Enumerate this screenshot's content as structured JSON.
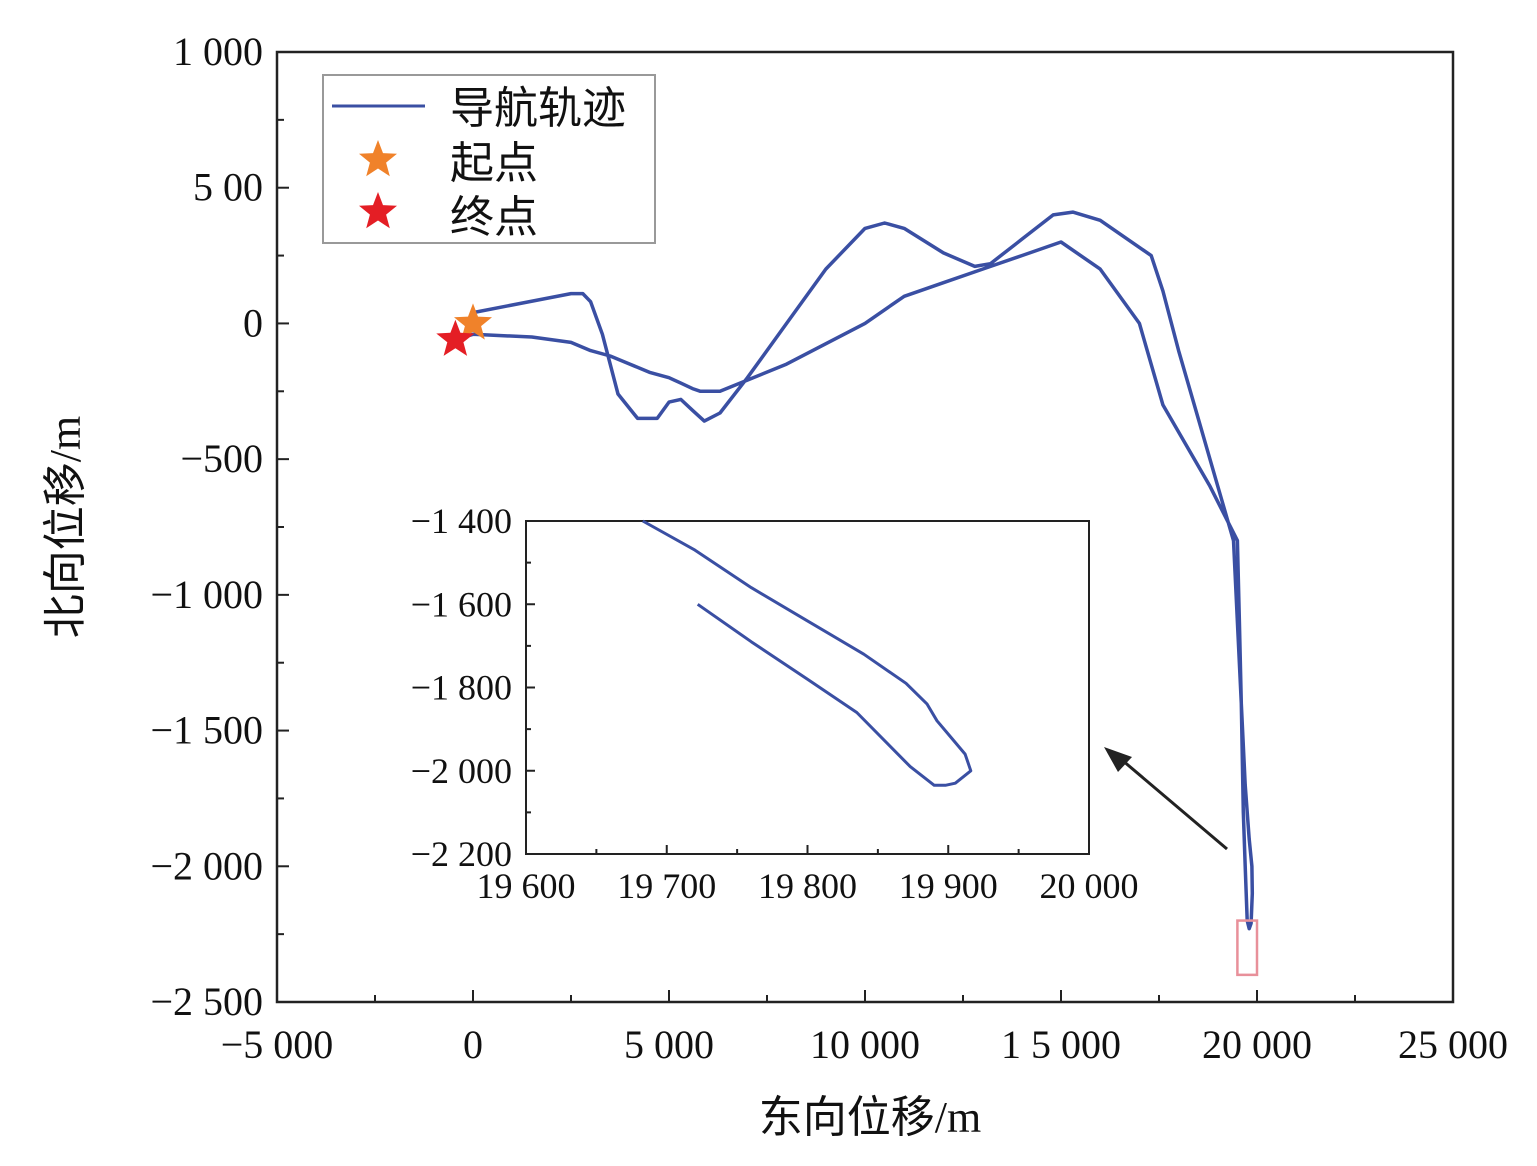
{
  "chart_data": [
    {
      "type": "line",
      "xlabel": "东向位移/m",
      "ylabel": "北向位移/m",
      "xlim": [
        -5000,
        25000
      ],
      "ylim": [
        -2500,
        1000
      ],
      "x_tick_labels": [
        "−5 000",
        "0",
        "5 000",
        "10 000",
        "1 5 000",
        "20 000",
        "25 000"
      ],
      "y_tick_labels": [
        "1 000",
        "5 00",
        "0",
        "−500",
        "−1 000",
        "−1 500",
        "−2 000",
        "−2 500"
      ],
      "grid": false,
      "legend_position": "top-left",
      "legend": [
        "导航轨迹",
        "起点",
        "终点"
      ],
      "series": [
        {
          "name": "导航轨迹",
          "color": "#3a4fa3",
          "x": [
            0,
            2500,
            2800,
            3000,
            3300,
            3700,
            4200,
            4700,
            5000,
            5300,
            5600,
            5900,
            6300,
            7000,
            8000,
            9000,
            10000,
            10500,
            11000,
            12000,
            12800,
            13200,
            14000,
            14800,
            15300,
            16000,
            17000,
            17300,
            17600,
            18000,
            18500,
            19000,
            19400,
            19600,
            19650,
            19700,
            19750,
            19800,
            19850,
            19880,
            19870,
            19800,
            19700,
            19600,
            19550,
            19500,
            18800,
            17600,
            17000,
            16000,
            15000,
            14000,
            13000,
            12000,
            11000,
            10000,
            8000,
            6300,
            5800,
            5600,
            5300,
            5000,
            4500,
            4000,
            3500,
            3000,
            2500,
            1500,
            0,
            -450
          ],
          "y": [
            40,
            110,
            110,
            80,
            -40,
            -260,
            -350,
            -350,
            -290,
            -280,
            -320,
            -360,
            -330,
            -200,
            0,
            200,
            350,
            370,
            350,
            260,
            210,
            220,
            310,
            400,
            410,
            380,
            280,
            250,
            120,
            -100,
            -350,
            -600,
            -800,
            -1400,
            -1800,
            -2000,
            -2200,
            -2230,
            -2210,
            -2100,
            -2000,
            -1900,
            -1700,
            -1400,
            -1100,
            -800,
            -600,
            -300,
            0,
            200,
            300,
            250,
            200,
            150,
            100,
            0,
            -150,
            -250,
            -250,
            -240,
            -220,
            -200,
            -180,
            -150,
            -120,
            -100,
            -70,
            -50,
            -40,
            -60
          ]
        }
      ],
      "markers": [
        {
          "name": "起点",
          "x": 0,
          "y": 0,
          "color": "#f0822a"
        },
        {
          "name": "终点",
          "x": -450,
          "y": -60,
          "color": "#e41e25"
        }
      ],
      "highlight_box": {
        "x_range": [
          19500,
          20000
        ],
        "y_range": [
          -2400,
          -2200
        ],
        "color": "#e8909a"
      }
    },
    {
      "type": "line",
      "inset": true,
      "xlim": [
        19600,
        20000
      ],
      "ylim": [
        -2200,
        -1400
      ],
      "x_tick_labels": [
        "19 600",
        "19 700",
        "19 800",
        "19 900",
        "20 000"
      ],
      "y_tick_labels": [
        "−1 400",
        "−1 600",
        "−1 800",
        "−2 000",
        "−2 200"
      ],
      "series": [
        {
          "color": "#3a4fa3",
          "x": [
            19683,
            19720,
            19760,
            19800,
            19840,
            19870,
            19885,
            19892,
            19902,
            19912,
            19916,
            19905,
            19898,
            19890,
            19873,
            19835,
            19800,
            19760,
            19722
          ],
          "y": [
            -1400,
            -1470,
            -1560,
            -1640,
            -1720,
            -1790,
            -1840,
            -1880,
            -1920,
            -1960,
            -2000,
            -2030,
            -2035,
            -2035,
            -1990,
            -1860,
            -1780,
            -1690,
            -1600
          ]
        }
      ]
    }
  ]
}
